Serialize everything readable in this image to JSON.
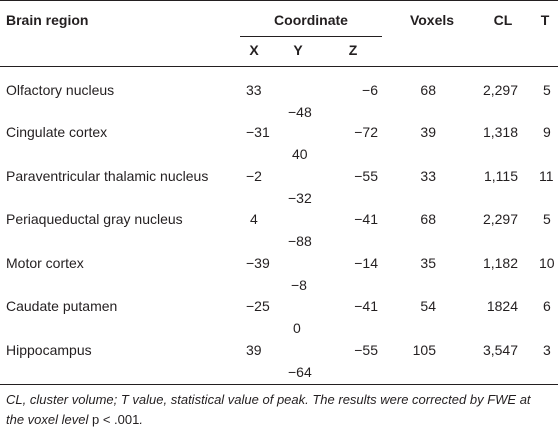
{
  "table": {
    "headers": {
      "region": "Brain region",
      "coordinate": "Coordinate",
      "x": "X",
      "y": "Y",
      "z": "Z",
      "voxels": "Voxels",
      "cl": "CL",
      "t": "T"
    },
    "rows": [
      {
        "region": "Olfactory nucleus",
        "x": "33",
        "y": "−48",
        "z": "−6",
        "voxels": "68",
        "cl": "2,297",
        "t": "5"
      },
      {
        "region": "Cingulate cortex",
        "x": "−31",
        "y": "40",
        "z": "−72",
        "voxels": "39",
        "cl": "1,318",
        "t": "9"
      },
      {
        "region": "Paraventricular thalamic nucleus",
        "x": "−2",
        "y": "−32",
        "z": "−55",
        "voxels": "33",
        "cl": "1,115",
        "t": "11"
      },
      {
        "region": "Periaqueductal gray nucleus",
        "x": "4",
        "y": "−88",
        "z": "−41",
        "voxels": "68",
        "cl": "2,297",
        "t": "5"
      },
      {
        "region": "Motor cortex",
        "x": "−39",
        "y": "−8",
        "z": "−14",
        "voxels": "35",
        "cl": "1,182",
        "t": "10"
      },
      {
        "region": "Caudate putamen",
        "x": "−25",
        "y": "0",
        "z": "−41",
        "voxels": "54",
        "cl": "1824",
        "t": "6"
      },
      {
        "region": "Hippocampus",
        "x": "39",
        "y": "−64",
        "z": "−55",
        "voxels": "105",
        "cl": "3,547",
        "t": "3"
      }
    ]
  },
  "footnote": {
    "text": "CL, cluster volume; T value, statistical value of peak. The results were corrected by FWE at the voxel level ",
    "pvalue": "p < .001",
    "end": "."
  }
}
